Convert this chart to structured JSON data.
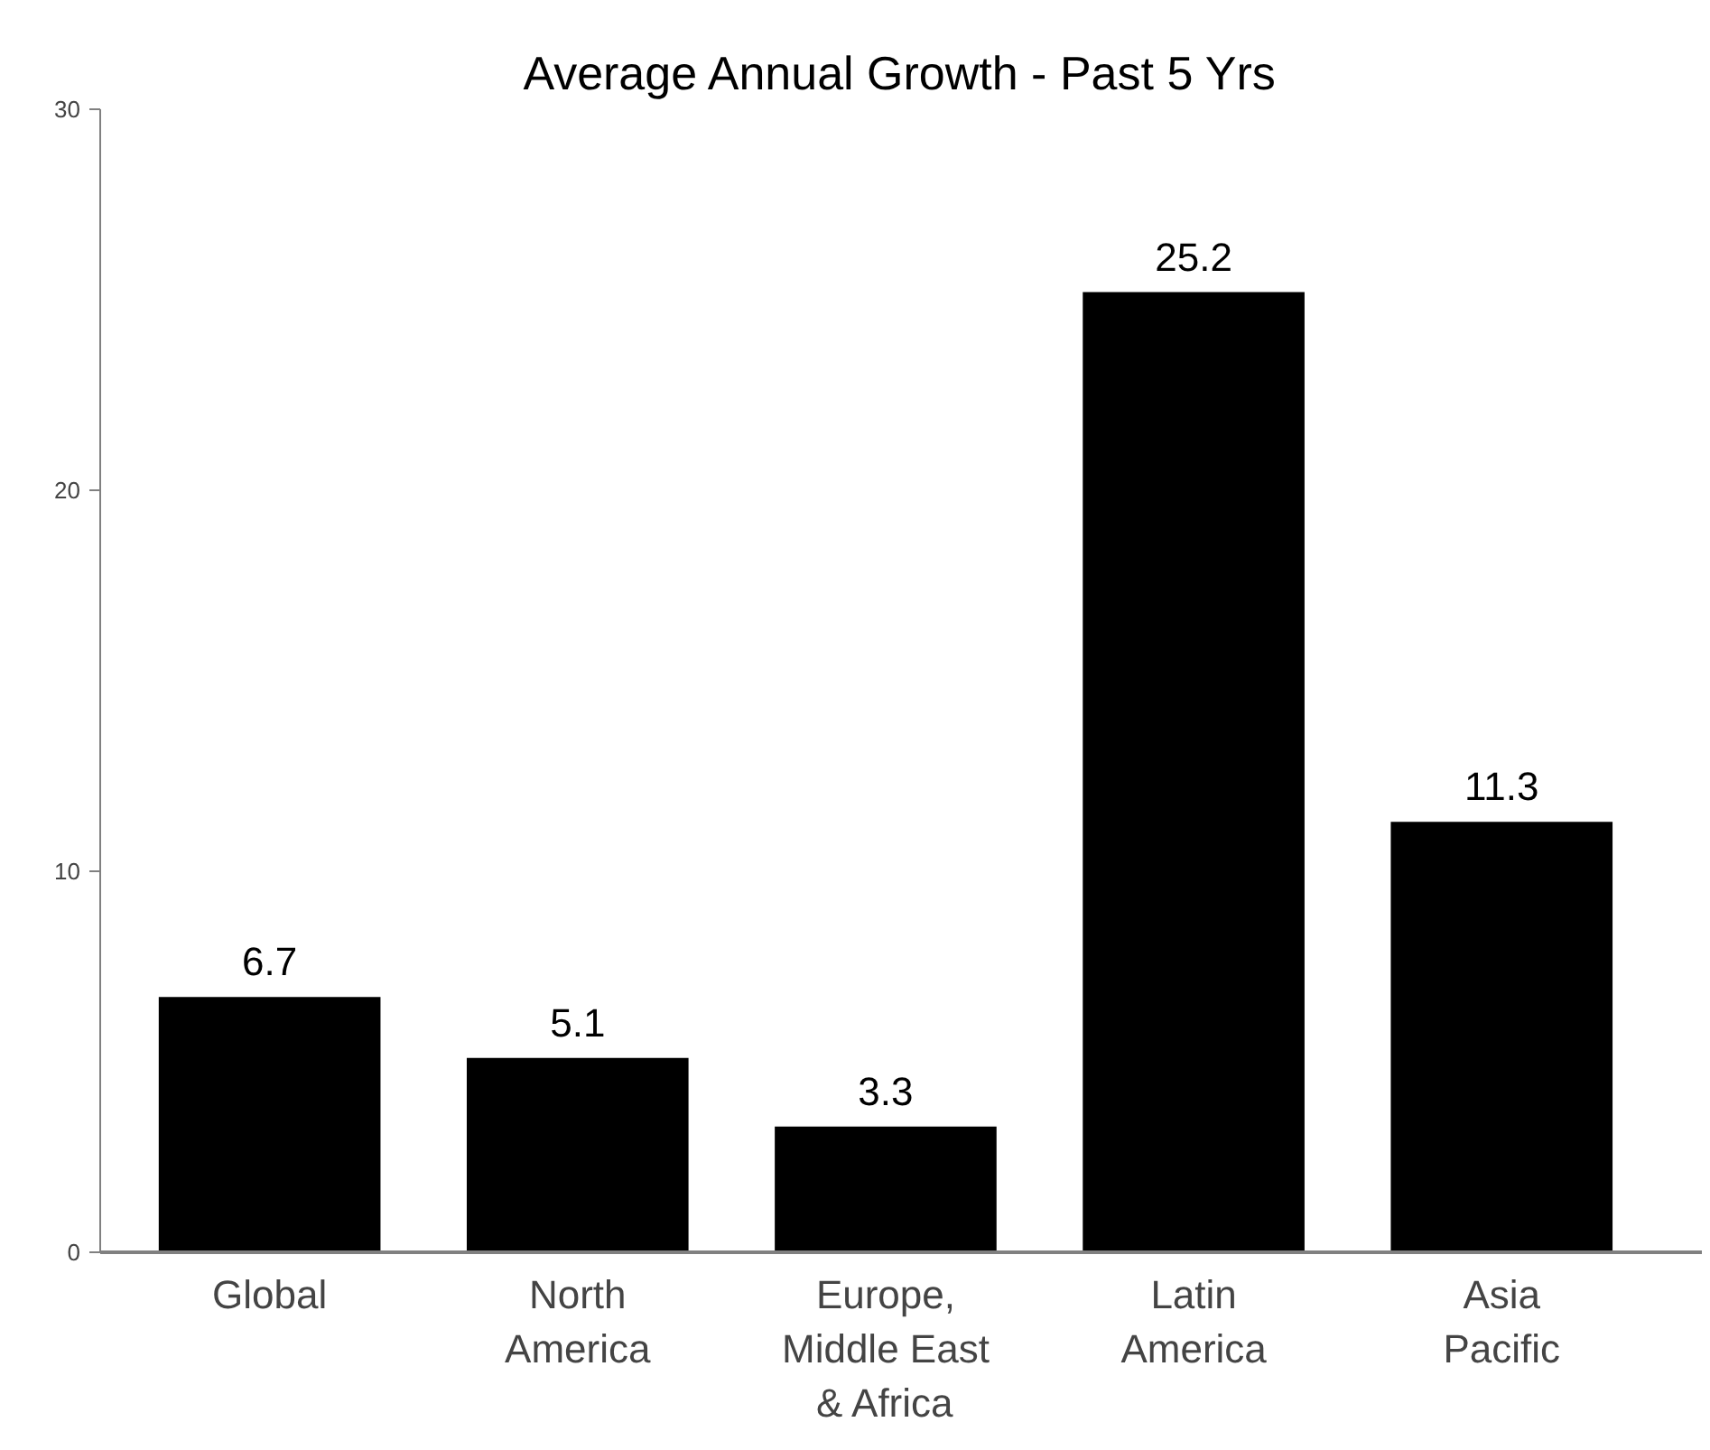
{
  "chart_data": {
    "type": "bar",
    "title": "Average Annual Growth - Past 5 Yrs",
    "categories": [
      "Global",
      "North America",
      "Europe, Middle East & Africa",
      "Latin America",
      "Asia Pacific"
    ],
    "values": [
      6.7,
      5.1,
      3.3,
      25.2,
      11.3
    ],
    "color": "#000000",
    "ylim": [
      0,
      30
    ],
    "yticks": [
      0,
      10,
      20,
      30
    ],
    "grid": false,
    "data_labels": true
  }
}
